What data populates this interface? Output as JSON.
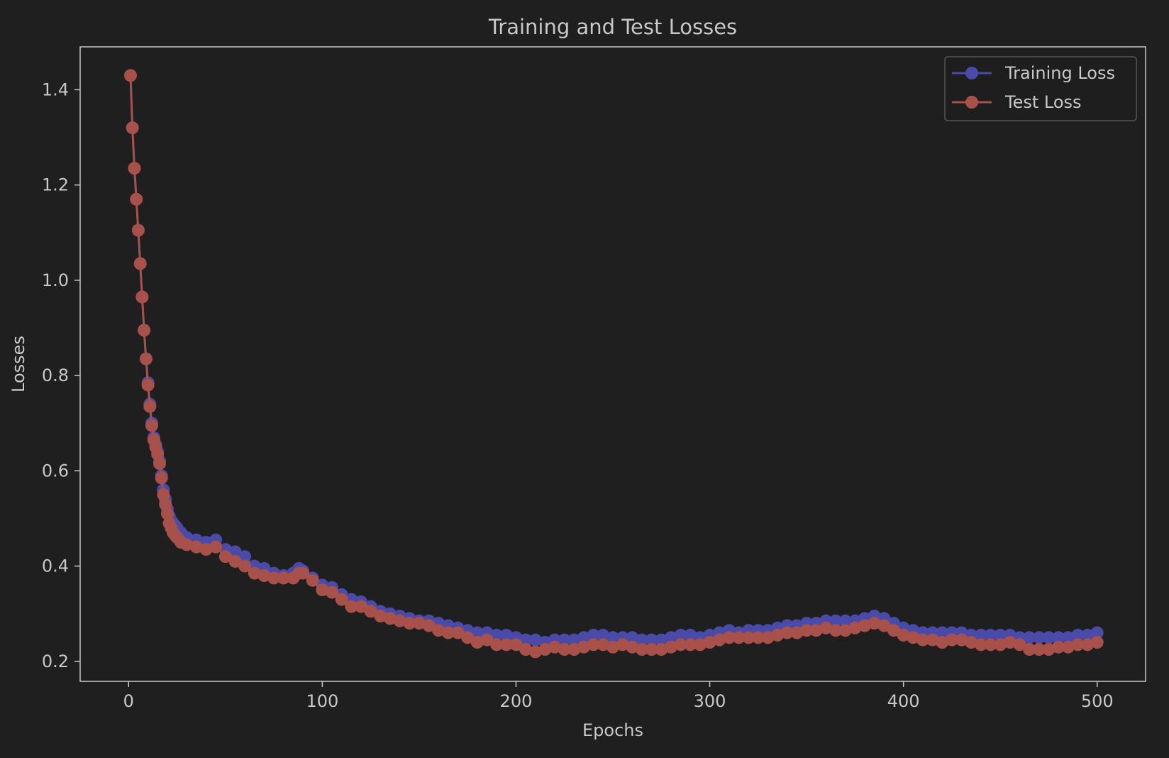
{
  "chart_data": {
    "type": "line",
    "title": "Training and Test Losses",
    "xlabel": "Epochs",
    "ylabel": "Losses",
    "xlim": [
      -25,
      525
    ],
    "ylim": [
      0.158,
      1.49
    ],
    "xticks": [
      0,
      100,
      200,
      300,
      400,
      500
    ],
    "yticks": [
      0.2,
      0.4,
      0.6,
      0.8,
      1.0,
      1.2,
      1.4
    ],
    "ytick_labels": [
      "0.2",
      "0.4",
      "0.6",
      "0.8",
      "1.0",
      "1.2",
      "1.4"
    ],
    "grid": false,
    "legend_position": "top-right",
    "colors": {
      "background": "#1f1f1f",
      "axes": "#c8c8c8",
      "training": "#4a4aa8",
      "test": "#a8504a"
    },
    "series": [
      {
        "name": "Training Loss",
        "x": [
          1,
          2,
          3,
          4,
          5,
          6,
          7,
          8,
          9,
          10,
          11,
          12,
          13,
          14,
          15,
          16,
          17,
          18,
          19,
          20,
          21,
          22,
          23,
          24,
          25,
          27,
          30,
          35,
          40,
          45,
          50,
          55,
          60,
          65,
          70,
          75,
          80,
          85,
          88,
          90,
          95,
          100,
          105,
          110,
          115,
          120,
          125,
          130,
          135,
          140,
          145,
          150,
          155,
          160,
          165,
          170,
          175,
          180,
          185,
          190,
          195,
          200,
          205,
          210,
          215,
          220,
          225,
          230,
          235,
          240,
          245,
          250,
          255,
          260,
          265,
          270,
          275,
          280,
          285,
          290,
          295,
          300,
          305,
          310,
          315,
          320,
          325,
          330,
          335,
          340,
          345,
          350,
          355,
          360,
          365,
          370,
          375,
          380,
          385,
          390,
          395,
          400,
          405,
          410,
          415,
          420,
          425,
          430,
          435,
          440,
          445,
          450,
          455,
          460,
          465,
          470,
          475,
          480,
          485,
          490,
          495,
          500
        ],
        "values": [
          1.43,
          1.32,
          1.235,
          1.17,
          1.105,
          1.035,
          0.965,
          0.895,
          0.835,
          0.785,
          0.74,
          0.7,
          0.67,
          0.655,
          0.64,
          0.62,
          0.59,
          0.56,
          0.54,
          0.52,
          0.505,
          0.495,
          0.49,
          0.485,
          0.48,
          0.47,
          0.46,
          0.455,
          0.45,
          0.455,
          0.435,
          0.43,
          0.42,
          0.4,
          0.395,
          0.385,
          0.38,
          0.385,
          0.395,
          0.39,
          0.375,
          0.36,
          0.355,
          0.34,
          0.33,
          0.325,
          0.315,
          0.305,
          0.3,
          0.295,
          0.29,
          0.285,
          0.285,
          0.28,
          0.275,
          0.27,
          0.265,
          0.26,
          0.26,
          0.255,
          0.255,
          0.25,
          0.245,
          0.245,
          0.24,
          0.245,
          0.245,
          0.245,
          0.25,
          0.255,
          0.255,
          0.25,
          0.25,
          0.25,
          0.245,
          0.245,
          0.245,
          0.25,
          0.255,
          0.255,
          0.25,
          0.255,
          0.26,
          0.265,
          0.26,
          0.265,
          0.265,
          0.265,
          0.27,
          0.275,
          0.275,
          0.28,
          0.28,
          0.285,
          0.285,
          0.285,
          0.285,
          0.29,
          0.295,
          0.29,
          0.28,
          0.27,
          0.265,
          0.26,
          0.26,
          0.26,
          0.26,
          0.26,
          0.255,
          0.255,
          0.255,
          0.255,
          0.255,
          0.25,
          0.25,
          0.25,
          0.25,
          0.25,
          0.25,
          0.255,
          0.255,
          0.26
        ]
      },
      {
        "name": "Test Loss",
        "x": [
          1,
          2,
          3,
          4,
          5,
          6,
          7,
          8,
          9,
          10,
          11,
          12,
          13,
          14,
          15,
          16,
          17,
          18,
          19,
          20,
          21,
          22,
          23,
          24,
          25,
          27,
          30,
          35,
          40,
          45,
          50,
          55,
          60,
          65,
          70,
          75,
          80,
          85,
          88,
          90,
          95,
          100,
          105,
          110,
          115,
          120,
          125,
          130,
          135,
          140,
          145,
          150,
          155,
          160,
          165,
          170,
          175,
          180,
          185,
          190,
          195,
          200,
          205,
          210,
          215,
          220,
          225,
          230,
          235,
          240,
          245,
          250,
          255,
          260,
          265,
          270,
          275,
          280,
          285,
          290,
          295,
          300,
          305,
          310,
          315,
          320,
          325,
          330,
          335,
          340,
          345,
          350,
          355,
          360,
          365,
          370,
          375,
          380,
          385,
          390,
          395,
          400,
          405,
          410,
          415,
          420,
          425,
          430,
          435,
          440,
          445,
          450,
          455,
          460,
          465,
          470,
          475,
          480,
          485,
          490,
          495,
          500
        ],
        "values": [
          1.43,
          1.32,
          1.235,
          1.17,
          1.105,
          1.035,
          0.965,
          0.895,
          0.835,
          0.78,
          0.735,
          0.695,
          0.665,
          0.65,
          0.635,
          0.615,
          0.585,
          0.55,
          0.53,
          0.51,
          0.49,
          0.48,
          0.47,
          0.465,
          0.46,
          0.45,
          0.445,
          0.44,
          0.435,
          0.44,
          0.42,
          0.41,
          0.4,
          0.385,
          0.38,
          0.375,
          0.375,
          0.375,
          0.385,
          0.385,
          0.37,
          0.35,
          0.345,
          0.33,
          0.315,
          0.315,
          0.305,
          0.295,
          0.29,
          0.285,
          0.28,
          0.28,
          0.275,
          0.265,
          0.26,
          0.26,
          0.25,
          0.24,
          0.245,
          0.235,
          0.235,
          0.235,
          0.225,
          0.22,
          0.225,
          0.23,
          0.225,
          0.225,
          0.23,
          0.235,
          0.235,
          0.23,
          0.235,
          0.23,
          0.225,
          0.225,
          0.225,
          0.23,
          0.235,
          0.235,
          0.235,
          0.24,
          0.245,
          0.25,
          0.25,
          0.25,
          0.25,
          0.25,
          0.255,
          0.26,
          0.26,
          0.265,
          0.265,
          0.27,
          0.265,
          0.265,
          0.27,
          0.275,
          0.28,
          0.275,
          0.265,
          0.255,
          0.25,
          0.245,
          0.245,
          0.24,
          0.245,
          0.245,
          0.24,
          0.235,
          0.235,
          0.235,
          0.24,
          0.235,
          0.225,
          0.225,
          0.225,
          0.23,
          0.23,
          0.235,
          0.235,
          0.24
        ]
      }
    ]
  }
}
